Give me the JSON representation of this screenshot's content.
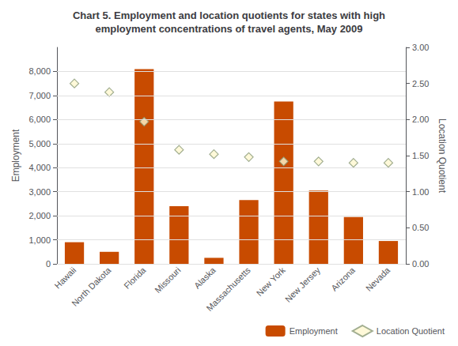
{
  "chart_data": {
    "type": "bar",
    "title": "Chart 5. Employment and location quotients for states with high\nemployment concentrations of travel agents, May 2009",
    "categories": [
      "Hawaii",
      "North Dakota",
      "Florida",
      "Missouri",
      "Alaska",
      "Massachusetts",
      "New York",
      "New Jersey",
      "Arizona",
      "Nevada"
    ],
    "series": [
      {
        "name": "Employment",
        "type": "bar",
        "color": "#C84B00",
        "values": [
          900,
          500,
          8100,
          2400,
          250,
          2650,
          6750,
          3050,
          1950,
          950
        ]
      },
      {
        "name": "Location Quotient",
        "type": "scatter",
        "marker": "diamond",
        "color": "#FFF8D0",
        "axis": "y2",
        "values": [
          2.5,
          2.38,
          1.97,
          1.58,
          1.52,
          1.48,
          1.42,
          1.42,
          1.4,
          1.4
        ]
      }
    ],
    "ylabel": "Employment",
    "y2label": "Location Quotient",
    "ylim": [
      0,
      9000
    ],
    "yticks": [
      0,
      {
        "value": 1000,
        "label": "1,000"
      },
      {
        "value": 2000,
        "label": "2,000"
      },
      {
        "value": 3000,
        "label": "3,000"
      },
      {
        "value": 4000,
        "label": "4,000"
      },
      {
        "value": 5000,
        "label": "5,000"
      },
      {
        "value": 6000,
        "label": "6,000"
      },
      {
        "value": 7000,
        "label": "7,000"
      },
      {
        "value": 8000,
        "label": "8,000"
      }
    ],
    "y2lim": [
      0,
      3.0
    ],
    "y2ticks": [
      {
        "value": 0,
        "label": "0.00"
      },
      {
        "value": 0.5,
        "label": "0.50"
      },
      {
        "value": 1.0,
        "label": "1.00"
      },
      {
        "value": 1.5,
        "label": "1.50"
      },
      {
        "value": 2.0,
        "label": "2.00"
      },
      {
        "value": 2.5,
        "label": "2.50"
      },
      {
        "value": 3.0,
        "label": "3.00"
      }
    ],
    "grid": true,
    "legend": "lower right"
  }
}
